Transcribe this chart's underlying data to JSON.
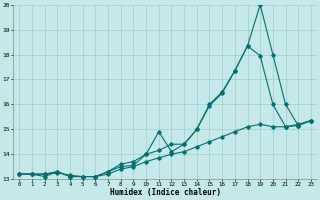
{
  "xlabel": "Humidex (Indice chaleur)",
  "xlim": [
    -0.5,
    23.5
  ],
  "ylim": [
    13,
    20
  ],
  "xticks": [
    0,
    1,
    2,
    3,
    4,
    5,
    6,
    7,
    8,
    9,
    10,
    11,
    12,
    13,
    14,
    15,
    16,
    17,
    18,
    19,
    20,
    21,
    22,
    23
  ],
  "yticks": [
    13,
    14,
    15,
    16,
    17,
    18,
    19,
    20
  ],
  "bg_color": "#c5e8e8",
  "grid_color": "#a0cccc",
  "line_color": "#007070",
  "line1_x": [
    0,
    1,
    2,
    3,
    4,
    5,
    6,
    7,
    8,
    9,
    10,
    11,
    12,
    13,
    14,
    15,
    16,
    17,
    18,
    19,
    20,
    21,
    22,
    23
  ],
  "line1_y": [
    13.2,
    13.2,
    13.1,
    13.3,
    13.1,
    13.1,
    13.1,
    13.3,
    13.5,
    13.55,
    14.0,
    14.15,
    14.4,
    14.4,
    15.0,
    16.0,
    16.5,
    17.35,
    18.35,
    20.0,
    18.0,
    16.0,
    15.15,
    15.35
  ],
  "line2_x": [
    0,
    1,
    2,
    3,
    4,
    5,
    6,
    7,
    8,
    9,
    10,
    11,
    12,
    13,
    14,
    15,
    16,
    17,
    18,
    19,
    20,
    21,
    22,
    23
  ],
  "line2_y": [
    13.2,
    13.2,
    13.2,
    13.3,
    13.1,
    13.1,
    13.1,
    13.3,
    13.6,
    13.7,
    14.0,
    14.9,
    14.1,
    14.4,
    15.0,
    15.95,
    16.45,
    17.35,
    18.35,
    17.95,
    16.0,
    15.1,
    15.15,
    15.35
  ],
  "line3_x": [
    0,
    1,
    2,
    3,
    4,
    5,
    6,
    7,
    8,
    9,
    10,
    11,
    12,
    13,
    14,
    15,
    16,
    17,
    18,
    19,
    20,
    21,
    22,
    23
  ],
  "line3_y": [
    13.2,
    13.2,
    13.2,
    13.25,
    13.15,
    13.1,
    13.1,
    13.2,
    13.4,
    13.5,
    13.7,
    13.85,
    14.0,
    14.1,
    14.3,
    14.5,
    14.7,
    14.9,
    15.1,
    15.2,
    15.1,
    15.1,
    15.2,
    15.35
  ]
}
